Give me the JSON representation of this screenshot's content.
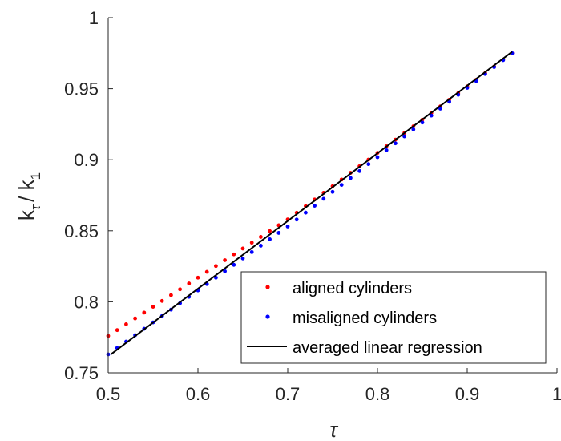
{
  "chart_data": {
    "type": "scatter",
    "title": "",
    "xlabel": "τ",
    "ylabel": {
      "k": "k",
      "sub_tau": "τ",
      "slash": "/ k",
      "sub_one": "1"
    },
    "xlim": [
      0.5,
      1.0
    ],
    "ylim": [
      0.75,
      1.0
    ],
    "xticks": [
      "0.5",
      "0.6",
      "0.7",
      "0.8",
      "0.9",
      "1"
    ],
    "yticks": [
      "0.75",
      "0.8",
      "0.85",
      "0.9",
      "0.95",
      "1"
    ],
    "grid": false,
    "legend_position": "bottom-right",
    "series": [
      {
        "name": "aligned cylinders",
        "kind": "dots",
        "color": "#ff0000",
        "x_start": 0.5,
        "x_end": 0.95,
        "x_step": 0.01,
        "points": [
          [
            0.5,
            0.776
          ],
          [
            0.7,
            0.858
          ],
          [
            0.95,
            0.975
          ]
        ]
      },
      {
        "name": "misaligned cylinders",
        "kind": "dots",
        "color": "#0000ff",
        "x_start": 0.5,
        "x_end": 0.95,
        "x_step": 0.01,
        "points": [
          [
            0.5,
            0.763
          ],
          [
            0.7,
            0.853
          ],
          [
            0.95,
            0.975
          ]
        ]
      },
      {
        "name": "averaged linear regression",
        "kind": "line",
        "color": "#000000",
        "points": [
          [
            0.503,
            0.763
          ],
          [
            0.95,
            0.976
          ]
        ]
      }
    ]
  }
}
